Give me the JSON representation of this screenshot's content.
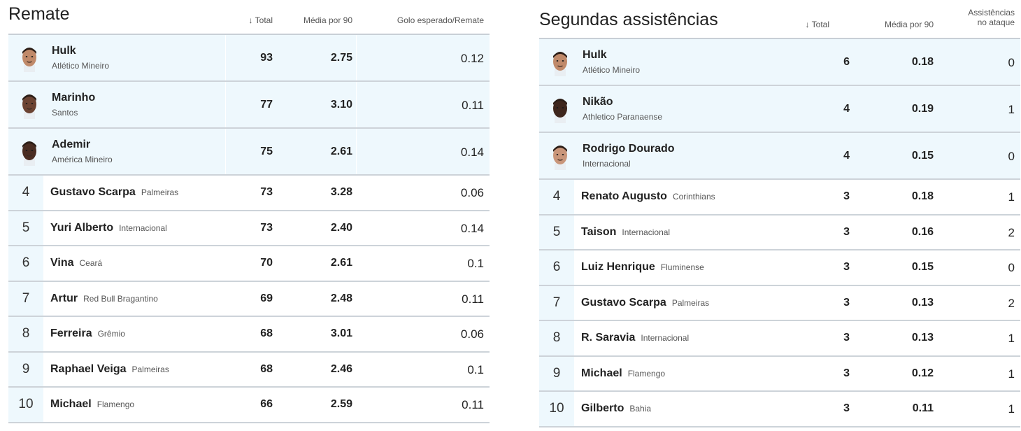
{
  "left": {
    "title": "Remate",
    "columns": {
      "total": "↓ Total",
      "per90": "Média por 90",
      "metric": "Golo esperado/Remate"
    },
    "rows": [
      {
        "rank": "1",
        "name": "Hulk",
        "team": "Atlético Mineiro",
        "total": "93",
        "per90": "2.75",
        "metric": "0.12",
        "skin": "#c08a6a"
      },
      {
        "rank": "2",
        "name": "Marinho",
        "team": "Santos",
        "total": "77",
        "per90": "3.10",
        "metric": "0.11",
        "skin": "#6b4332"
      },
      {
        "rank": "3",
        "name": "Ademir",
        "team": "América Mineiro",
        "total": "75",
        "per90": "2.61",
        "metric": "0.14",
        "skin": "#4a2d22"
      },
      {
        "rank": "4",
        "name": "Gustavo Scarpa",
        "team": "Palmeiras",
        "total": "73",
        "per90": "3.28",
        "metric": "0.06"
      },
      {
        "rank": "5",
        "name": "Yuri Alberto",
        "team": "Internacional",
        "total": "73",
        "per90": "2.40",
        "metric": "0.14"
      },
      {
        "rank": "6",
        "name": "Vina",
        "team": "Ceará",
        "total": "70",
        "per90": "2.61",
        "metric": "0.1"
      },
      {
        "rank": "7",
        "name": "Artur",
        "team": "Red Bull Bragantino",
        "total": "69",
        "per90": "2.48",
        "metric": "0.11"
      },
      {
        "rank": "8",
        "name": "Ferreira",
        "team": "Grêmio",
        "total": "68",
        "per90": "3.01",
        "metric": "0.06"
      },
      {
        "rank": "9",
        "name": "Raphael Veiga",
        "team": "Palmeiras",
        "total": "68",
        "per90": "2.46",
        "metric": "0.1"
      },
      {
        "rank": "10",
        "name": "Michael",
        "team": "Flamengo",
        "total": "66",
        "per90": "2.59",
        "metric": "0.11"
      }
    ]
  },
  "right": {
    "title": "Segundas assistências",
    "columns": {
      "total": "↓ Total",
      "per90": "Média por 90",
      "metric_line1": "Assistências",
      "metric_line2": "no ataque"
    },
    "rows": [
      {
        "rank": "1",
        "name": "Hulk",
        "team": "Atlético Mineiro",
        "total": "6",
        "per90": "0.18",
        "metric": "0",
        "skin": "#c08a6a"
      },
      {
        "rank": "2",
        "name": "Nikão",
        "team": "Athletico Paranaense",
        "total": "4",
        "per90": "0.19",
        "metric": "1",
        "skin": "#3e261c"
      },
      {
        "rank": "3",
        "name": "Rodrigo Dourado",
        "team": "Internacional",
        "total": "4",
        "per90": "0.15",
        "metric": "0",
        "skin": "#c9967a"
      },
      {
        "rank": "4",
        "name": "Renato Augusto",
        "team": "Corinthians",
        "total": "3",
        "per90": "0.18",
        "metric": "1"
      },
      {
        "rank": "5",
        "name": "Taison",
        "team": "Internacional",
        "total": "3",
        "per90": "0.16",
        "metric": "2"
      },
      {
        "rank": "6",
        "name": "Luiz Henrique",
        "team": "Fluminense",
        "total": "3",
        "per90": "0.15",
        "metric": "0"
      },
      {
        "rank": "7",
        "name": "Gustavo Scarpa",
        "team": "Palmeiras",
        "total": "3",
        "per90": "0.13",
        "metric": "2"
      },
      {
        "rank": "8",
        "name": "R. Saravia",
        "team": "Internacional",
        "total": "3",
        "per90": "0.13",
        "metric": "1"
      },
      {
        "rank": "9",
        "name": "Michael",
        "team": "Flamengo",
        "total": "3",
        "per90": "0.12",
        "metric": "1"
      },
      {
        "rank": "10",
        "name": "Gilberto",
        "team": "Bahia",
        "total": "3",
        "per90": "0.11",
        "metric": "1"
      }
    ]
  }
}
